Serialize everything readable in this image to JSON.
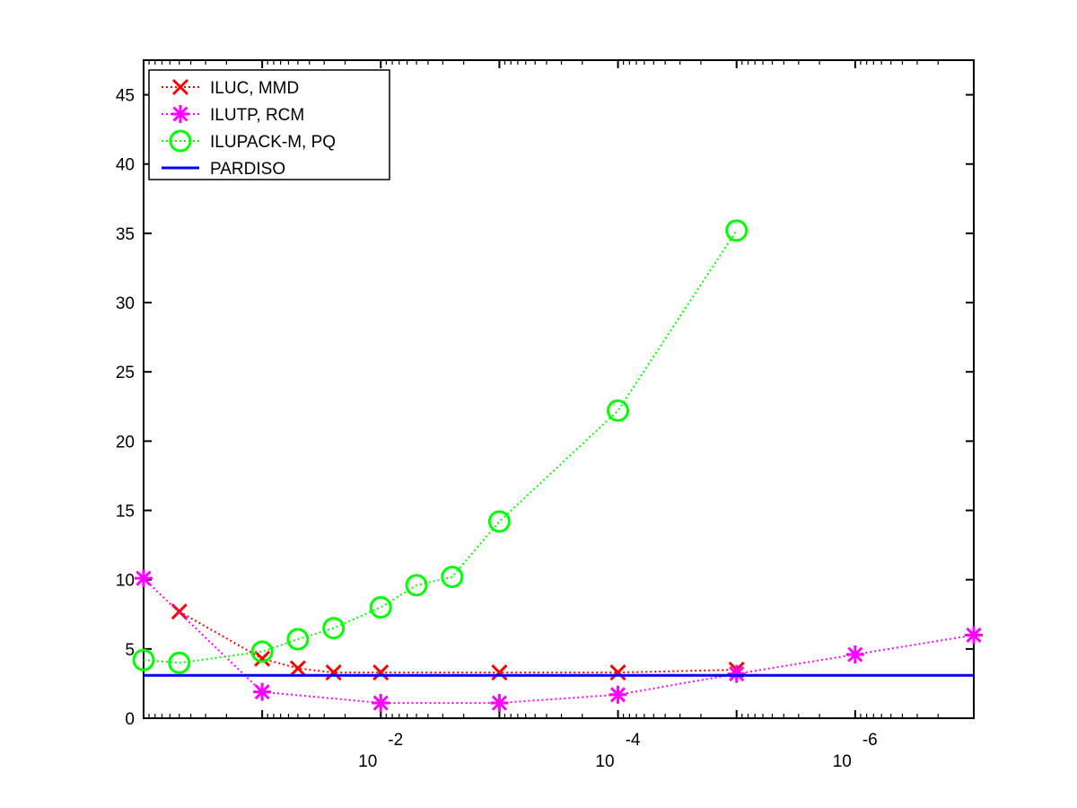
{
  "chart_data": {
    "type": "line",
    "title": "",
    "xlabel": "",
    "ylabel": "",
    "x_scale": "log",
    "x_reversed": true,
    "xlim": [
      1,
      1e-07
    ],
    "ylim": [
      0,
      47.5
    ],
    "yticks": [
      0,
      5,
      10,
      15,
      20,
      25,
      30,
      35,
      40,
      45
    ],
    "xticks": [
      {
        "value": 0.01,
        "base": "10",
        "exp": "-2"
      },
      {
        "value": 0.0001,
        "base": "10",
        "exp": "-4"
      },
      {
        "value": 1e-06,
        "base": "10",
        "exp": "-6"
      }
    ],
    "grid": false,
    "legend_position": "top-left",
    "series": [
      {
        "name": "ILUC, MMD",
        "color": "#ff0000",
        "marker": "x",
        "line_style": "dotted",
        "x": [
          0.5,
          0.1,
          0.05,
          0.025,
          0.01,
          0.001,
          0.0001,
          1e-05
        ],
        "y": [
          7.7,
          4.3,
          3.6,
          3.3,
          3.3,
          3.3,
          3.3,
          3.5
        ]
      },
      {
        "name": "ILUTP, RCM",
        "color": "#ff00ff",
        "marker": "asterisk",
        "line_style": "dotted",
        "x": [
          1,
          0.1,
          0.01,
          0.001,
          0.0001,
          1e-05,
          1e-06,
          1e-07
        ],
        "y": [
          10.1,
          1.9,
          1.1,
          1.1,
          1.7,
          3.2,
          4.6,
          6.0
        ]
      },
      {
        "name": "ILUPACK-M, PQ",
        "color": "#00ff00",
        "marker": "circle",
        "line_style": "dotted",
        "x": [
          1,
          0.5,
          0.1,
          0.05,
          0.025,
          0.01,
          0.005,
          0.0025,
          0.001,
          0.0001,
          1e-05
        ],
        "y": [
          4.2,
          4.0,
          4.8,
          5.7,
          6.5,
          8.0,
          9.6,
          10.2,
          14.2,
          22.2,
          35.2
        ]
      },
      {
        "name": "PARDISO",
        "color": "#0000ff",
        "marker": "none",
        "line_style": "solid",
        "x": [
          1,
          1e-07
        ],
        "y": [
          3.1,
          3.1
        ]
      }
    ]
  }
}
